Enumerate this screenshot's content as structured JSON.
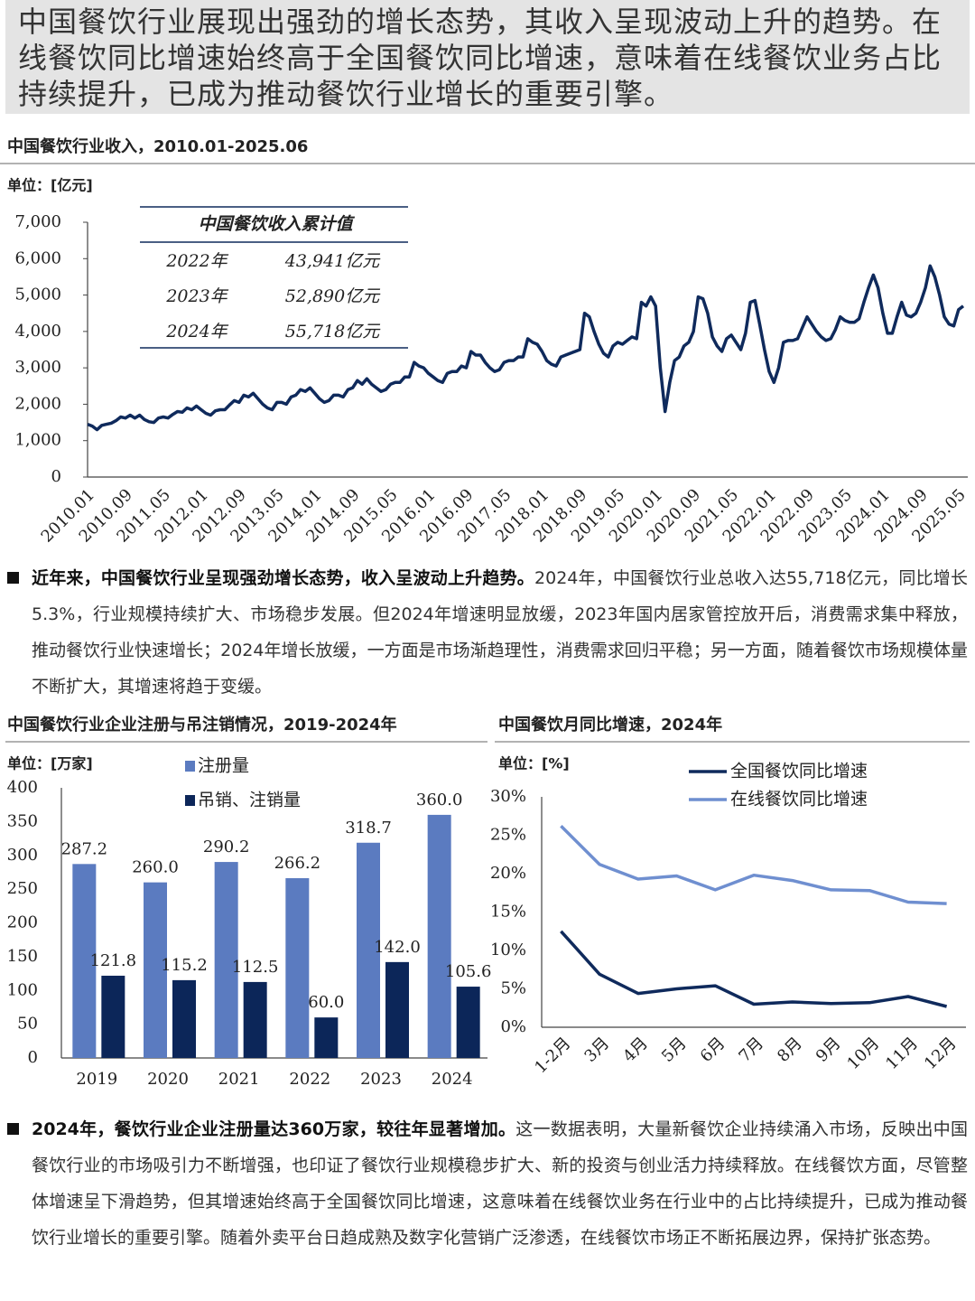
{
  "header": {
    "text": "中国餐饮行业展现出强劲的增长态势，其收入呈现波动上升的趋势。在线餐饮同比增速始终高于全国餐饮同比增速，意味着在线餐饮业务占比持续提升，已成为推动餐饮行业增长的重要引擎。"
  },
  "chart_data": [
    {
      "type": "line",
      "title": "中国餐饮行业收入，2010.01-2025.06",
      "unit": "单位：[亿元]",
      "color": "#0f2a5c",
      "table": {
        "title": "中国餐饮收入累计值",
        "rows": [
          [
            "2022年",
            "43,941亿元"
          ],
          [
            "2023年",
            "52,890亿元"
          ],
          [
            "2024年",
            "55,718亿元"
          ]
        ]
      },
      "categories": [
        "2010.01",
        null,
        null,
        null,
        null,
        null,
        null,
        null,
        "2010.09",
        null,
        null,
        null,
        null,
        null,
        null,
        null,
        "2011.05",
        null,
        null,
        null,
        null,
        null,
        null,
        null,
        "2012.01",
        null,
        null,
        null,
        null,
        null,
        null,
        null,
        "2012.09",
        null,
        null,
        null,
        null,
        null,
        null,
        null,
        "2013.05",
        null,
        null,
        null,
        null,
        null,
        null,
        null,
        "2014.01",
        null,
        null,
        null,
        null,
        null,
        null,
        null,
        "2014.09",
        null,
        null,
        null,
        null,
        null,
        null,
        null,
        "2015.05",
        null,
        null,
        null,
        null,
        null,
        null,
        null,
        "2016.01",
        null,
        null,
        null,
        null,
        null,
        null,
        null,
        "2016.09",
        null,
        null,
        null,
        null,
        null,
        null,
        null,
        "2017.05",
        null,
        null,
        null,
        null,
        null,
        null,
        null,
        "2018.01",
        null,
        null,
        null,
        null,
        null,
        null,
        null,
        "2018.09",
        null,
        null,
        null,
        null,
        null,
        null,
        null,
        "2019.05",
        null,
        null,
        null,
        null,
        null,
        null,
        null,
        "2020.01",
        null,
        null,
        null,
        null,
        null,
        null,
        null,
        "2020.09",
        null,
        null,
        null,
        null,
        null,
        null,
        null,
        "2021.05",
        null,
        null,
        null,
        null,
        null,
        null,
        null,
        "2022.01",
        null,
        null,
        null,
        null,
        null,
        null,
        null,
        "2022.09",
        null,
        null,
        null,
        null,
        null,
        null,
        null,
        "2023.05",
        null,
        null,
        null,
        null,
        null,
        null,
        null,
        "2024.01",
        null,
        null,
        null,
        null,
        null,
        null,
        null,
        "2024.09",
        null,
        null,
        null,
        null,
        null,
        null,
        null,
        "2025.05",
        null
      ],
      "values": [
        1450,
        1400,
        1300,
        1420,
        1450,
        1480,
        1550,
        1650,
        1620,
        1700,
        1620,
        1700,
        1580,
        1520,
        1500,
        1620,
        1650,
        1620,
        1720,
        1800,
        1780,
        1900,
        1850,
        1950,
        1850,
        1750,
        1700,
        1820,
        1850,
        1850,
        1980,
        2100,
        2050,
        2250,
        2200,
        2300,
        2150,
        2000,
        1900,
        1850,
        2050,
        2050,
        2000,
        2200,
        2250,
        2400,
        2350,
        2450,
        2300,
        2150,
        2050,
        2100,
        2250,
        2250,
        2200,
        2400,
        2450,
        2650,
        2550,
        2700,
        2550,
        2450,
        2350,
        2400,
        2550,
        2600,
        2600,
        2750,
        2750,
        3150,
        3050,
        3000,
        2850,
        2750,
        2650,
        2600,
        2850,
        2900,
        2900,
        3050,
        3000,
        3450,
        3350,
        3350,
        3150,
        3000,
        2900,
        2950,
        3150,
        3200,
        3200,
        3300,
        3300,
        3800,
        3700,
        3650,
        3450,
        3200,
        3100,
        3050,
        3300,
        3350,
        3400,
        3450,
        3500,
        4500,
        4400,
        4000,
        3650,
        3400,
        3300,
        3600,
        3700,
        3650,
        3750,
        3850,
        3800,
        4800,
        4700,
        4950,
        4700,
        3000,
        1800,
        2600,
        3200,
        3300,
        3600,
        3700,
        4000,
        4950,
        4900,
        4500,
        3850,
        3600,
        3450,
        3800,
        3900,
        3700,
        3500,
        3950,
        4800,
        4850,
        4200,
        3500,
        2900,
        2600,
        3000,
        3700,
        3750,
        3750,
        3800,
        4100,
        4400,
        4200,
        4000,
        3850,
        3750,
        3800,
        4050,
        4400,
        4300,
        4250,
        4250,
        4350,
        4800,
        5200,
        5550,
        5200,
        4500,
        3950,
        3950,
        4400,
        4800,
        4450,
        4400,
        4500,
        4800,
        5200,
        5800,
        5500,
        5000,
        4400,
        4200,
        4150,
        4600,
        4700
      ],
      "ylim": [
        0,
        7000
      ],
      "yticks": [
        0,
        {
          "value": 1000,
          "label": "1,000"
        },
        {
          "value": 2000,
          "label": "2,000"
        },
        {
          "value": 3000,
          "label": "3,000"
        },
        {
          "value": 4000,
          "label": "4,000"
        },
        {
          "value": 5000,
          "label": "5,000"
        },
        {
          "value": 6000,
          "label": "6,000"
        },
        {
          "value": 7000,
          "label": "7,000"
        }
      ]
    },
    {
      "type": "bar",
      "title": "中国餐饮行业企业注册与吊注销情况，2019-2024年",
      "unit": "单位：[万家]",
      "categories": [
        "2019",
        "2020",
        "2021",
        "2022",
        "2023",
        "2024"
      ],
      "series": [
        {
          "name": "注册量",
          "color": "#5b7bc0",
          "values": [
            287.2,
            260.0,
            290.2,
            266.2,
            318.7,
            360.0
          ],
          "value_labels": [
            "287.2",
            "260.0",
            "290.2",
            "266.2",
            "318.7",
            "360.0"
          ]
        },
        {
          "name": "吊销、注销量",
          "color": "#0c2659",
          "values": [
            121.8,
            115.2,
            112.5,
            60.0,
            142.0,
            105.6
          ],
          "value_labels": [
            "121.8",
            "115.2",
            "112.5",
            "60.0",
            "142.0",
            "105.6"
          ]
        }
      ],
      "ylim": [
        0,
        400
      ],
      "yticks": [
        0,
        50,
        100,
        150,
        200,
        250,
        300,
        350,
        400
      ]
    },
    {
      "type": "line",
      "title": "中国餐饮月同比增速，2024年",
      "unit": "单位：[%]",
      "categories": [
        "1-2月",
        "3月",
        "4月",
        "5月",
        "6月",
        "7月",
        "8月",
        "9月",
        "10月",
        "11月",
        "12月"
      ],
      "series": [
        {
          "name": "全国餐饮同比增速",
          "color": "#0f2a5c",
          "values": [
            12.5,
            6.9,
            4.4,
            5.0,
            5.4,
            3.0,
            3.3,
            3.1,
            3.2,
            4.0,
            2.7
          ]
        },
        {
          "name": "在线餐饮同比增速",
          "color": "#6f8fd0",
          "values": [
            26.2,
            21.2,
            19.3,
            19.7,
            17.9,
            19.8,
            19.1,
            17.9,
            17.8,
            16.3,
            16.1
          ]
        }
      ],
      "ylim": [
        0,
        30
      ],
      "yticks": [
        {
          "value": 0,
          "label": "0%"
        },
        {
          "value": 5,
          "label": "5%"
        },
        {
          "value": 10,
          "label": "10%"
        },
        {
          "value": 15,
          "label": "15%"
        },
        {
          "value": 20,
          "label": "20%"
        },
        {
          "value": 25,
          "label": "25%"
        },
        {
          "value": 30,
          "label": "30%"
        }
      ]
    }
  ],
  "paragraphs": [
    {
      "lead": "近年来，中国餐饮行业呈现强劲增长态势，收入呈波动上升趋势。",
      "text": "2024年，中国餐饮行业总收入达55,718亿元，同比增长5.3%，行业规模持续扩大、市场稳步发展。但2024年增速明显放缓，2023年国内居家管控放开后，消费需求集中释放，推动餐饮行业快速增长；2024年增长放缓，一方面是市场渐趋理性，消费需求回归平稳；另一方面，随着餐饮市场规模体量不断扩大，其增速将趋于变缓。"
    },
    {
      "lead": "2024年，餐饮行业企业注册量达360万家，较往年显著增加。",
      "text": "这一数据表明，大量新餐饮企业持续涌入市场，反映出中国餐饮行业的市场吸引力不断增强，也印证了餐饮行业规模稳步扩大、新的投资与创业活力持续释放。在线餐饮方面，尽管整体增速呈下滑趋势，但其增速始终高于全国餐饮同比增速，这意味着在线餐饮业务在行业中的占比持续提升，已成为推动餐饮行业增长的重要引擎。随着外卖平台日趋成熟及数字化营销广泛渗透，在线餐饮市场正不断拓展边界，保持扩张态势。"
    }
  ]
}
